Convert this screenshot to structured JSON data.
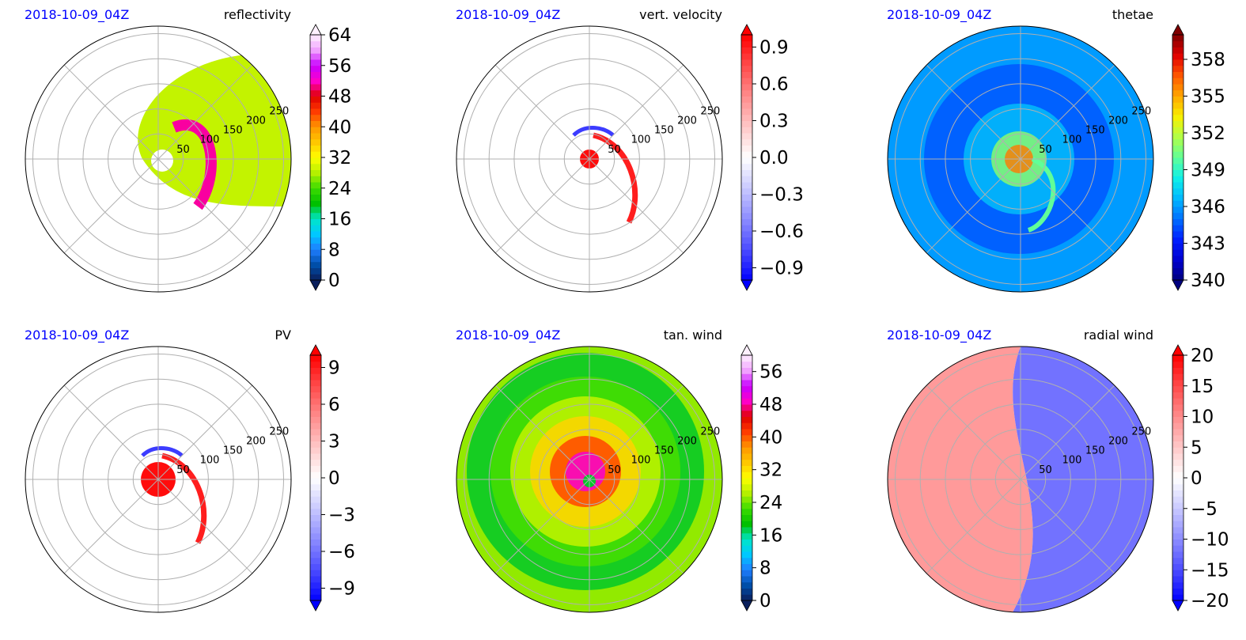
{
  "figure": {
    "panels": [
      {
        "timestamp": "2018-10-09_04Z",
        "title": "reflectivity",
        "radial_labels": [
          "50",
          "100",
          "150",
          "200",
          "250"
        ],
        "colorbar": {
          "ticks": [
            "0",
            "8",
            "16",
            "24",
            "32",
            "40",
            "48",
            "56",
            "64"
          ],
          "extend": "both"
        }
      },
      {
        "timestamp": "2018-10-09_04Z",
        "title": "vert. velocity",
        "radial_labels": [
          "50",
          "100",
          "150",
          "200",
          "250"
        ],
        "colorbar": {
          "ticks": [
            "0.9",
            "0.6",
            "0.3",
            "0.0",
            "−0.3",
            "−0.6",
            "−0.9"
          ],
          "extend": "both"
        }
      },
      {
        "timestamp": "2018-10-09_04Z",
        "title": "thetae",
        "radial_labels": [
          "50",
          "100",
          "150",
          "200",
          "250"
        ],
        "colorbar": {
          "ticks": [
            "358",
            "355",
            "352",
            "349",
            "346",
            "343",
            "340"
          ],
          "extend": "both"
        }
      },
      {
        "timestamp": "2018-10-09_04Z",
        "title": "PV",
        "radial_labels": [
          "50",
          "100",
          "150",
          "200",
          "250"
        ],
        "colorbar": {
          "ticks": [
            "9",
            "6",
            "3",
            "0",
            "−3",
            "−6",
            "−9"
          ],
          "extend": "both"
        }
      },
      {
        "timestamp": "2018-10-09_04Z",
        "title": "tan. wind",
        "radial_labels": [
          "50",
          "100",
          "150",
          "200",
          "250"
        ],
        "colorbar": {
          "ticks": [
            "56",
            "48",
            "40",
            "32",
            "24",
            "16",
            "8",
            "0"
          ],
          "extend": "both"
        }
      },
      {
        "timestamp": "2018-10-09_04Z",
        "title": "radial wind",
        "radial_labels": [
          "50",
          "100",
          "150",
          "200",
          "250"
        ],
        "colorbar": {
          "ticks": [
            "20",
            "15",
            "10",
            "5",
            "0",
            "−5",
            "−10",
            "−15",
            "−20"
          ],
          "extend": "both"
        }
      }
    ]
  },
  "colors": {
    "timestamp": "#0000ff",
    "grid": "#b0b0b0",
    "outline": "#000000"
  },
  "chart_data": [
    {
      "type": "heatmap",
      "projection": "polar",
      "title": "reflectivity",
      "timestamp": "2018-10-09_04Z",
      "r_ticks": [
        50,
        100,
        150,
        200,
        250
      ],
      "colorbar_range": [
        0,
        64
      ],
      "colorbar_ticks": [
        0,
        8,
        16,
        24,
        32,
        40,
        48,
        56,
        64
      ],
      "colormap": "radar reflectivity (navy-blue-cyan-green-yellow-orange-red-magenta-white)"
    },
    {
      "type": "heatmap",
      "projection": "polar",
      "title": "vert. velocity",
      "timestamp": "2018-10-09_04Z",
      "r_ticks": [
        50,
        100,
        150,
        200,
        250
      ],
      "colorbar_range": [
        -1.0,
        1.0
      ],
      "colorbar_ticks": [
        -0.9,
        -0.6,
        -0.3,
        0.0,
        0.3,
        0.6,
        0.9
      ],
      "colormap": "bwr"
    },
    {
      "type": "heatmap",
      "projection": "polar",
      "title": "thetae",
      "timestamp": "2018-10-09_04Z",
      "r_ticks": [
        50,
        100,
        150,
        200,
        250
      ],
      "colorbar_range": [
        340,
        360
      ],
      "colorbar_ticks": [
        340,
        343,
        346,
        349,
        352,
        355,
        358
      ],
      "colormap": "jet"
    },
    {
      "type": "heatmap",
      "projection": "polar",
      "title": "PV",
      "timestamp": "2018-10-09_04Z",
      "r_ticks": [
        50,
        100,
        150,
        200,
        250
      ],
      "colorbar_range": [
        -10,
        10
      ],
      "colorbar_ticks": [
        -9,
        -6,
        -3,
        0,
        3,
        6,
        9
      ],
      "colormap": "bwr"
    },
    {
      "type": "heatmap",
      "projection": "polar",
      "title": "tan. wind",
      "timestamp": "2018-10-09_04Z",
      "r_ticks": [
        50,
        100,
        150,
        200,
        250
      ],
      "colorbar_range": [
        0,
        60
      ],
      "colorbar_ticks": [
        0,
        8,
        16,
        24,
        32,
        40,
        48,
        56
      ],
      "colormap": "radar (navy-blue-cyan-green-yellow-orange-red-magenta-white)"
    },
    {
      "type": "heatmap",
      "projection": "polar",
      "title": "radial wind",
      "timestamp": "2018-10-09_04Z",
      "r_ticks": [
        50,
        100,
        150,
        200,
        250
      ],
      "colorbar_range": [
        -20,
        20
      ],
      "colorbar_ticks": [
        -20,
        -15,
        -10,
        -5,
        0,
        5,
        10,
        15,
        20
      ],
      "colormap": "bwr"
    }
  ]
}
